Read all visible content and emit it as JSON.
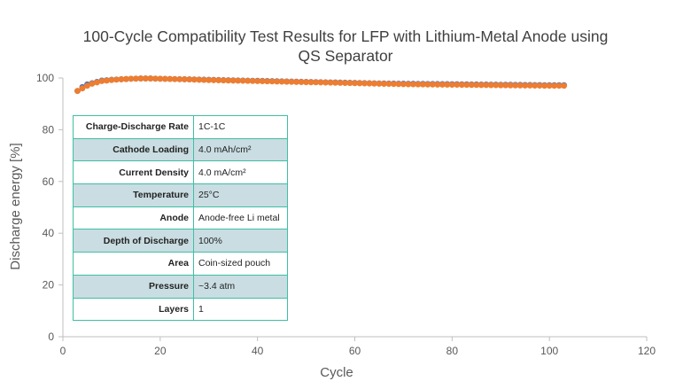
{
  "chart_data": {
    "type": "scatter",
    "title": "100-Cycle Compatibility Test Results for LFP with Lithium-Metal Anode using QS Separator",
    "title_lines": [
      "100-Cycle Compatibility Test Results for LFP with Lithium-Metal Anode using",
      "QS Separator"
    ],
    "xlabel": "Cycle",
    "ylabel": "Discharge energy [%]",
    "xlim": [
      0,
      120
    ],
    "ylim": [
      0,
      100
    ],
    "xticks": [
      0,
      20,
      40,
      60,
      80,
      100,
      120
    ],
    "yticks": [
      0,
      20,
      40,
      60,
      80,
      100
    ],
    "grid": false,
    "legend": "none",
    "series": [
      {
        "color": "#4472c4",
        "x": [
          3,
          4,
          5,
          6,
          7,
          8,
          10,
          12,
          14,
          16,
          18,
          20,
          25,
          30,
          35,
          40,
          45,
          50,
          55,
          60,
          65,
          70,
          75,
          80,
          85,
          90,
          95,
          100,
          103
        ],
        "y": [
          95,
          96.5,
          97.5,
          98,
          98.5,
          99,
          99.3,
          99.5,
          99.7,
          99.8,
          99.8,
          99.7,
          99.5,
          99.3,
          99.1,
          98.9,
          98.7,
          98.5,
          98.3,
          98.1,
          97.9,
          97.8,
          97.7,
          97.6,
          97.5,
          97.4,
          97.3,
          97.2,
          97.2
        ]
      },
      {
        "color": "#ed7d31",
        "x": [
          3,
          4,
          5,
          6,
          7,
          8,
          10,
          12,
          14,
          16,
          18,
          20,
          25,
          30,
          35,
          40,
          45,
          50,
          55,
          60,
          65,
          70,
          75,
          80,
          85,
          90,
          95,
          100,
          103
        ],
        "y": [
          95,
          96,
          97,
          97.8,
          98.3,
          98.8,
          99.2,
          99.5,
          99.7,
          99.8,
          99.8,
          99.7,
          99.5,
          99.2,
          99,
          98.8,
          98.6,
          98.4,
          98.2,
          98,
          97.8,
          97.6,
          97.5,
          97.4,
          97.3,
          97.2,
          97.1,
          97,
          97
        ]
      }
    ],
    "annotation_table": {
      "rows": [
        {
          "label": "Charge-Discharge Rate",
          "value": "1C-1C"
        },
        {
          "label": "Cathode Loading",
          "value": "4.0 mAh/cm²"
        },
        {
          "label": "Current Density",
          "value": "4.0 mA/cm²"
        },
        {
          "label": "Temperature",
          "value": "25°C"
        },
        {
          "label": "Anode",
          "value": "Anode-free Li metal"
        },
        {
          "label": "Depth of Discharge",
          "value": "100%"
        },
        {
          "label": "Area",
          "value": "Coin-sized pouch"
        },
        {
          "label": "Pressure",
          "value": "~3.4 atm"
        },
        {
          "label": "Layers",
          "value": "1"
        }
      ]
    }
  }
}
